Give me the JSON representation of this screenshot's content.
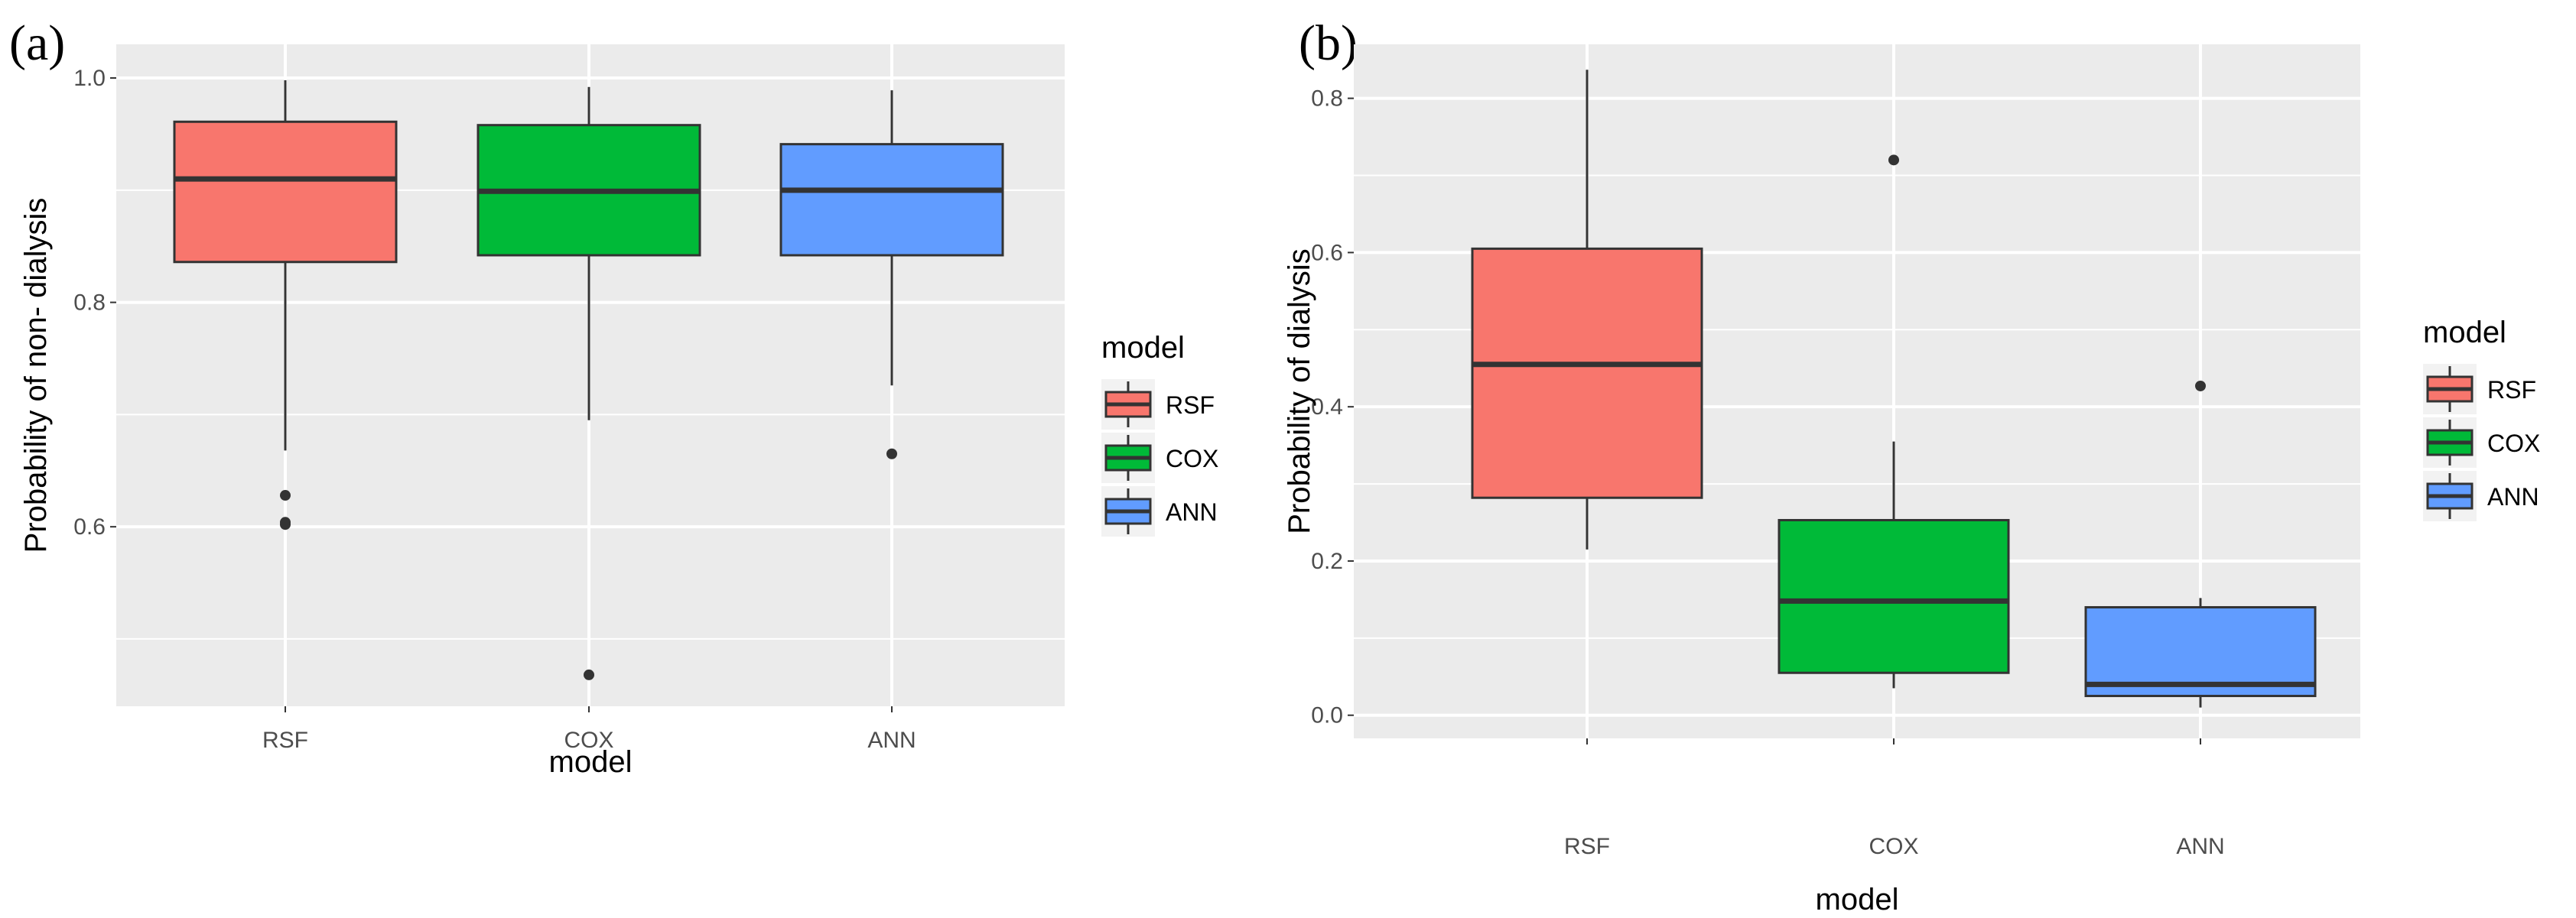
{
  "chart_data": [
    {
      "type": "boxplot",
      "panel_label": "(a)",
      "xlabel": "model",
      "ylabel": "Probability of non- dialysis",
      "ylim": [
        0.44,
        1.03
      ],
      "yticks": [
        0.6,
        0.8,
        1.0
      ],
      "ytick_labels": [
        "0.6",
        "0.8",
        "1.0"
      ],
      "categories": [
        "RSF",
        "COX",
        "ANN"
      ],
      "boxes": [
        {
          "name": "RSF",
          "color": "#F8766D",
          "whisker_low": 0.668,
          "q1": 0.836,
          "median": 0.91,
          "q3": 0.961,
          "whisker_high": 0.998,
          "outliers": [
            0.628,
            0.604,
            0.602
          ]
        },
        {
          "name": "COX",
          "color": "#00BA38",
          "whisker_low": 0.695,
          "q1": 0.842,
          "median": 0.899,
          "q3": 0.958,
          "whisker_high": 0.992,
          "outliers": [
            0.468
          ]
        },
        {
          "name": "ANN",
          "color": "#619CFF",
          "whisker_low": 0.726,
          "q1": 0.842,
          "median": 0.9,
          "q3": 0.941,
          "whisker_high": 0.989,
          "outliers": [
            0.665
          ]
        }
      ],
      "legend": {
        "title": "model",
        "entries": [
          "RSF",
          "COX",
          "ANN"
        ],
        "position": "right"
      }
    },
    {
      "type": "boxplot",
      "panel_label": "(b)",
      "xlabel": "model",
      "ylabel": "Probability of dialysis",
      "ylim": [
        -0.03,
        0.87
      ],
      "yticks": [
        0.0,
        0.2,
        0.4,
        0.6,
        0.8
      ],
      "ytick_labels": [
        "0.0",
        "0.2",
        "0.4",
        "0.6",
        "0.8"
      ],
      "categories": [
        "RSF",
        "COX",
        "ANN"
      ],
      "boxes": [
        {
          "name": "RSF",
          "color": "#F8766D",
          "whisker_low": 0.215,
          "q1": 0.282,
          "median": 0.455,
          "q3": 0.605,
          "whisker_high": 0.837,
          "outliers": []
        },
        {
          "name": "COX",
          "color": "#00BA38",
          "whisker_low": 0.035,
          "q1": 0.055,
          "median": 0.148,
          "q3": 0.253,
          "whisker_high": 0.355,
          "outliers": [
            0.72
          ]
        },
        {
          "name": "ANN",
          "color": "#619CFF",
          "whisker_low": 0.01,
          "q1": 0.025,
          "median": 0.04,
          "q3": 0.14,
          "whisker_high": 0.152,
          "outliers": [
            0.427
          ]
        }
      ],
      "legend": {
        "title": "model",
        "entries": [
          "RSF",
          "COX",
          "ANN"
        ],
        "position": "right"
      }
    }
  ]
}
